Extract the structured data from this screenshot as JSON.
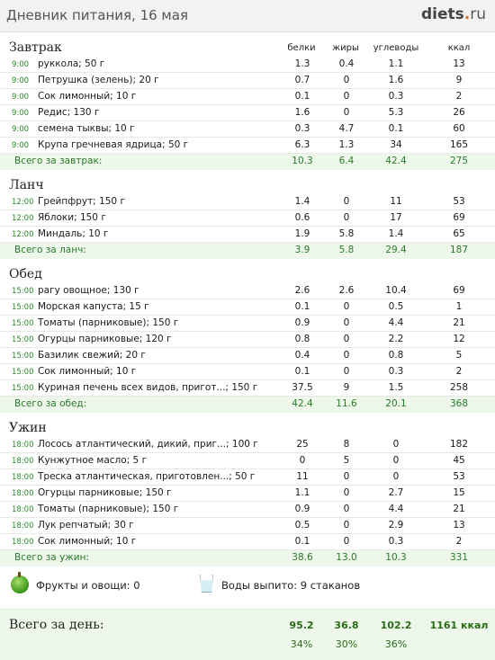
{
  "header": {
    "title": "Дневник питания, 16 мая",
    "logo_main": "diets",
    "logo_dot": ".",
    "logo_tld": "ru"
  },
  "columns": [
    "белки",
    "жиры",
    "углеводы",
    "ккал"
  ],
  "meals": [
    {
      "name": "Завтрак",
      "total_label": "Всего за завтрак:",
      "totals": [
        "10.3",
        "6.4",
        "42.4",
        "275"
      ],
      "items": [
        {
          "time": "9:00",
          "food": "руккола; 50 г",
          "p": "1.3",
          "f": "0.4",
          "c": "1.1",
          "k": "13"
        },
        {
          "time": "9:00",
          "food": "Петрушка (зелень); 20 г",
          "p": "0.7",
          "f": "0",
          "c": "1.6",
          "k": "9"
        },
        {
          "time": "9:00",
          "food": "Сок лимонный; 10 г",
          "p": "0.1",
          "f": "0",
          "c": "0.3",
          "k": "2"
        },
        {
          "time": "9:00",
          "food": "Редис; 130 г",
          "p": "1.6",
          "f": "0",
          "c": "5.3",
          "k": "26"
        },
        {
          "time": "9:00",
          "food": "семена тыквы; 10 г",
          "p": "0.3",
          "f": "4.7",
          "c": "0.1",
          "k": "60"
        },
        {
          "time": "9:00",
          "food": "Крупа гречневая ядрица; 50 г",
          "p": "6.3",
          "f": "1.3",
          "c": "34",
          "k": "165"
        }
      ]
    },
    {
      "name": "Ланч",
      "total_label": "Всего за ланч:",
      "totals": [
        "3.9",
        "5.8",
        "29.4",
        "187"
      ],
      "items": [
        {
          "time": "12:00",
          "food": "Грейпфрут; 150 г",
          "p": "1.4",
          "f": "0",
          "c": "11",
          "k": "53"
        },
        {
          "time": "12:00",
          "food": "Яблоки; 150 г",
          "p": "0.6",
          "f": "0",
          "c": "17",
          "k": "69"
        },
        {
          "time": "12:00",
          "food": "Миндаль; 10 г",
          "p": "1.9",
          "f": "5.8",
          "c": "1.4",
          "k": "65"
        }
      ]
    },
    {
      "name": "Обед",
      "total_label": "Всего за обед:",
      "totals": [
        "42.4",
        "11.6",
        "20.1",
        "368"
      ],
      "items": [
        {
          "time": "15:00",
          "food": "рагу овощное; 130 г",
          "p": "2.6",
          "f": "2.6",
          "c": "10.4",
          "k": "69"
        },
        {
          "time": "15:00",
          "food": "Морская капуста; 15 г",
          "p": "0.1",
          "f": "0",
          "c": "0.5",
          "k": "1"
        },
        {
          "time": "15:00",
          "food": "Томаты (парниковые); 150 г",
          "p": "0.9",
          "f": "0",
          "c": "4.4",
          "k": "21"
        },
        {
          "time": "15:00",
          "food": "Огурцы парниковые; 120 г",
          "p": "0.8",
          "f": "0",
          "c": "2.2",
          "k": "12"
        },
        {
          "time": "15:00",
          "food": "Базилик свежий; 20 г",
          "p": "0.4",
          "f": "0",
          "c": "0.8",
          "k": "5"
        },
        {
          "time": "15:00",
          "food": "Сок лимонный; 10 г",
          "p": "0.1",
          "f": "0",
          "c": "0.3",
          "k": "2"
        },
        {
          "time": "15:00",
          "food": "Куриная печень всех видов, пригот...; 150 г",
          "p": "37.5",
          "f": "9",
          "c": "1.5",
          "k": "258"
        }
      ]
    },
    {
      "name": "Ужин",
      "total_label": "Всего за ужин:",
      "totals": [
        "38.6",
        "13.0",
        "10.3",
        "331"
      ],
      "items": [
        {
          "time": "18:00",
          "food": "Лосось атлантический, дикий, приг...; 100 г",
          "p": "25",
          "f": "8",
          "c": "0",
          "k": "182"
        },
        {
          "time": "18:00",
          "food": "Кунжутное масло; 5 г",
          "p": "0",
          "f": "5",
          "c": "0",
          "k": "45"
        },
        {
          "time": "18:00",
          "food": "Треска атлантическая, приготовлен...; 50 г",
          "p": "11",
          "f": "0",
          "c": "0",
          "k": "53"
        },
        {
          "time": "18:00",
          "food": "Огурцы парниковые; 150 г",
          "p": "1.1",
          "f": "0",
          "c": "2.7",
          "k": "15"
        },
        {
          "time": "18:00",
          "food": "Томаты (парниковые); 150 г",
          "p": "0.9",
          "f": "0",
          "c": "4.4",
          "k": "21"
        },
        {
          "time": "18:00",
          "food": "Лук репчатый; 30 г",
          "p": "0.5",
          "f": "0",
          "c": "2.9",
          "k": "13"
        },
        {
          "time": "18:00",
          "food": "Сок лимонный; 10 г",
          "p": "0.1",
          "f": "0",
          "c": "0.3",
          "k": "2"
        }
      ]
    }
  ],
  "extras": {
    "fruits_label": "Фрукты и овощи: 0",
    "water_label": "Воды выпито: 9 стаканов",
    "fruit_icon": "apple-icon",
    "water_icon": "glass-icon"
  },
  "day_total": {
    "label": "Всего за день:",
    "protein": "95.2",
    "fat": "36.8",
    "carbs": "102.2",
    "kcal": "1161 ккал",
    "protein_pct": "34%",
    "fat_pct": "30%",
    "carbs_pct": "36%"
  },
  "colors": {
    "accent_green": "#2a7a2a",
    "total_bg": "#eef8ea",
    "logo_dot": "#e07020"
  }
}
